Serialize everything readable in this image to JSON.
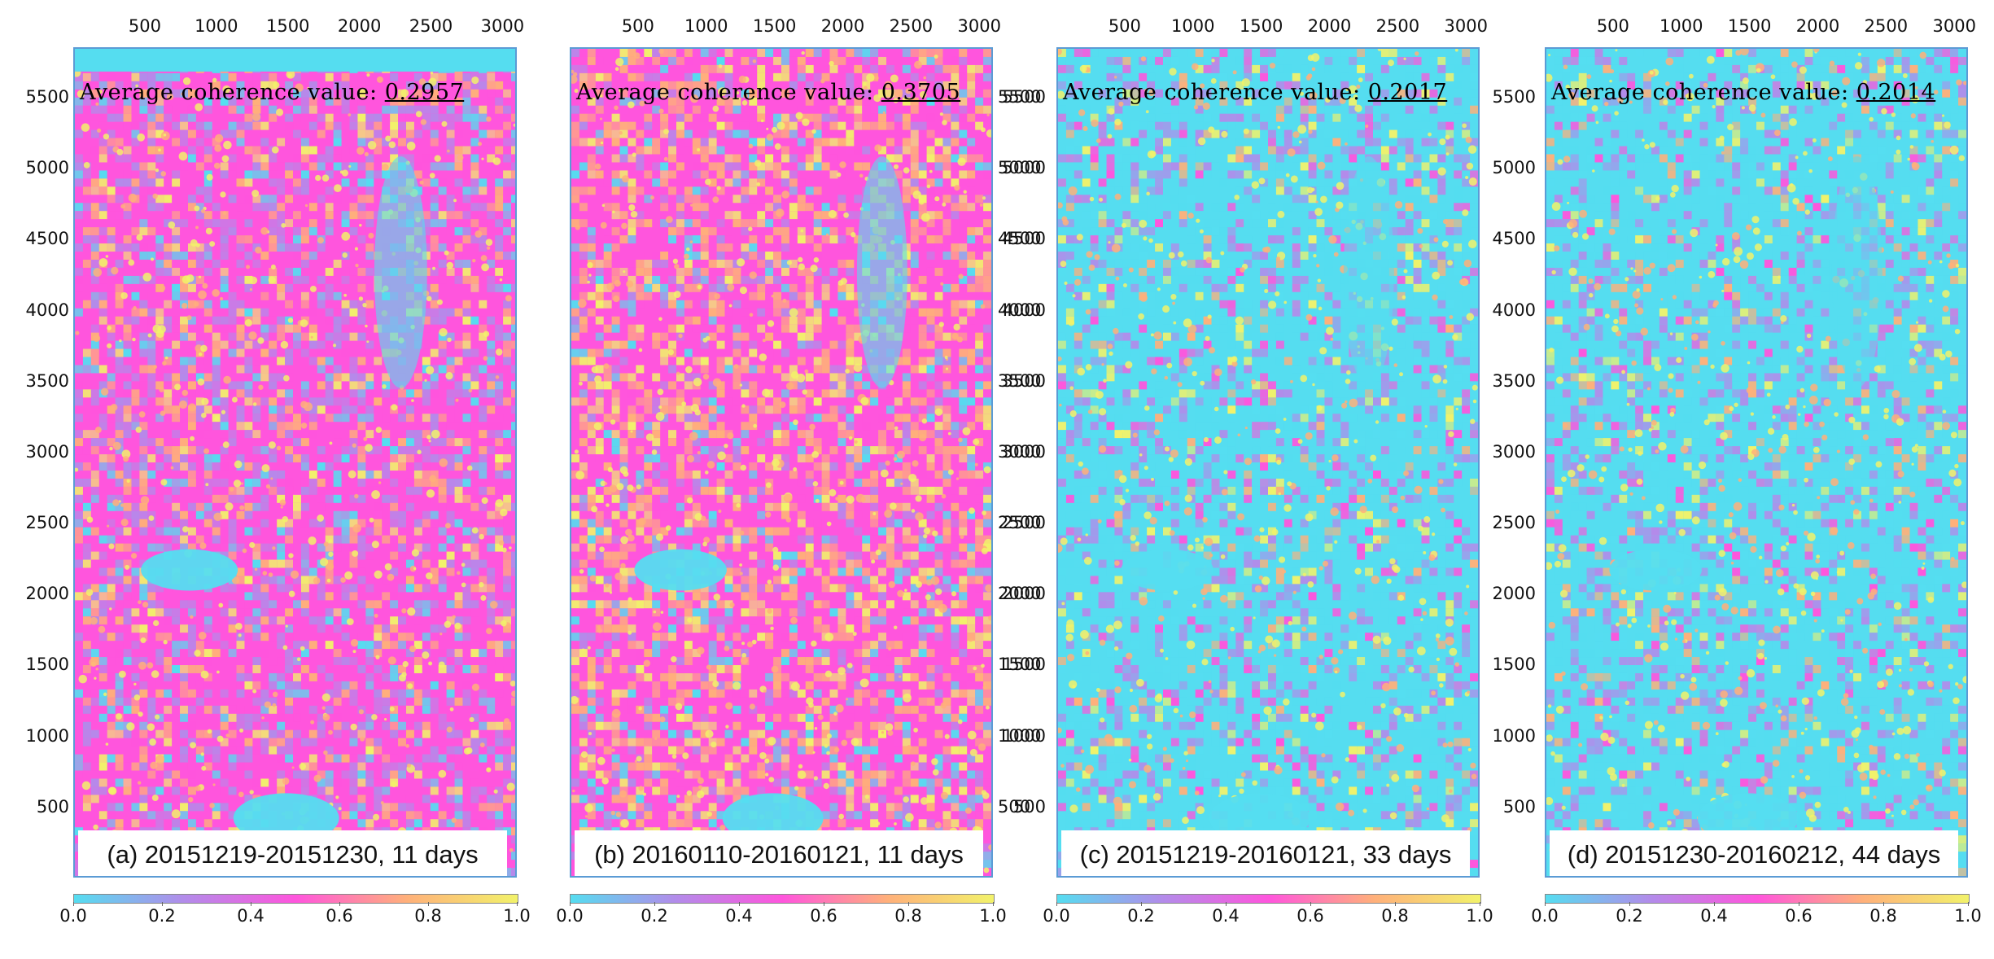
{
  "x_ticks": [
    "500",
    "1000",
    "1500",
    "2000",
    "2500",
    "3000"
  ],
  "y_ticks": [
    "5500",
    "5000",
    "4500",
    "4000",
    "3500",
    "3000",
    "2500",
    "2000",
    "1500",
    "1000",
    "500"
  ],
  "colorbar_ticks": [
    "0.0",
    "0.2",
    "0.4",
    "0.6",
    "0.8",
    "1.0"
  ],
  "coherence_label": "Average coherence value:",
  "colors": {
    "cyan": "#55ddf0",
    "violet": "#b38bea",
    "magenta": "#ff55dd",
    "orange": "#ffb07a",
    "yellow": "#f2f26a",
    "frame": "#5b9bd5"
  },
  "chart_data": [
    {
      "type": "heatmap",
      "caption": "(a) 20151219-20151230, 11 days",
      "average_coherence": "0.2957",
      "xlim": [
        0,
        3100
      ],
      "ylim": [
        0,
        5850
      ],
      "colorbar_range": [
        0.0,
        1.0
      ],
      "y_axis_side": "left",
      "dominant_tone": "magenta"
    },
    {
      "type": "heatmap",
      "caption": "(b) 20160110-20160121, 11 days",
      "average_coherence": "0.3705",
      "xlim": [
        0,
        3100
      ],
      "ylim": [
        0,
        5850
      ],
      "colorbar_range": [
        0.0,
        1.0
      ],
      "y_axis_side": "right",
      "dominant_tone": "magenta-orange"
    },
    {
      "type": "heatmap",
      "caption": "(c) 20151219-20160121, 33 days",
      "average_coherence": "0.2017",
      "xlim": [
        0,
        3100
      ],
      "ylim": [
        0,
        5850
      ],
      "colorbar_range": [
        0.0,
        1.0
      ],
      "y_axis_side": "left",
      "dominant_tone": "cyan"
    },
    {
      "type": "heatmap",
      "caption": "(d) 20151230-20160212, 44 days",
      "average_coherence": "0.2014",
      "xlim": [
        0,
        3100
      ],
      "ylim": [
        0,
        5850
      ],
      "colorbar_range": [
        0.0,
        1.0
      ],
      "y_axis_side": "left",
      "dominant_tone": "cyan"
    }
  ]
}
